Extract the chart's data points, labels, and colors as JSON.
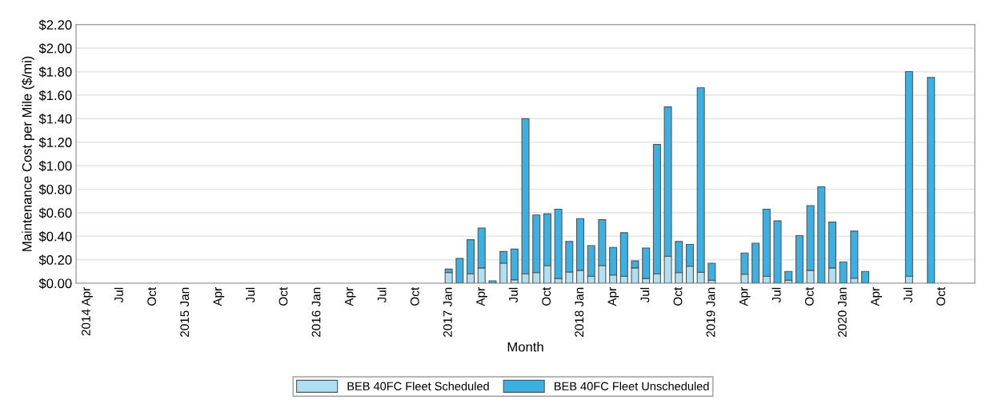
{
  "chart_data": {
    "type": "bar",
    "stacked": true,
    "xlabel": "Month",
    "ylabel": "Maintenance Cost per Mile ($/mi)",
    "categories": [
      "2014 Apr",
      null,
      null,
      "Jul",
      null,
      null,
      "Oct",
      null,
      null,
      "2015 Jan",
      null,
      null,
      "Apr",
      null,
      null,
      "Jul",
      null,
      null,
      "Oct",
      null,
      null,
      "2016 Jan",
      null,
      null,
      "Apr",
      null,
      null,
      "Jul",
      null,
      null,
      "Oct",
      null,
      null,
      "2017 Jan",
      null,
      null,
      "Apr",
      null,
      null,
      "Jul",
      null,
      null,
      "Oct",
      null,
      null,
      "2018 Jan",
      null,
      null,
      "Apr",
      null,
      null,
      "Jul",
      null,
      null,
      "Oct",
      null,
      null,
      "2019 Jan",
      null,
      null,
      "Apr",
      null,
      null,
      "Jul",
      null,
      null,
      "Oct",
      null,
      null,
      "2020 Jan",
      null,
      null,
      "Apr",
      null,
      null,
      "Jul",
      null,
      null,
      "Oct",
      null,
      null
    ],
    "series": [
      {
        "name": "BEB 40FC Fleet Scheduled",
        "color": "#aee0f2",
        "values": [
          null,
          null,
          null,
          null,
          null,
          null,
          null,
          null,
          null,
          null,
          null,
          null,
          null,
          null,
          null,
          null,
          null,
          null,
          null,
          null,
          null,
          null,
          null,
          null,
          null,
          null,
          null,
          null,
          null,
          null,
          null,
          null,
          null,
          0.09,
          null,
          0.08,
          0.13,
          0.0,
          0.17,
          0.03,
          0.08,
          0.09,
          0.15,
          0.04,
          0.095,
          0.11,
          0.06,
          0.15,
          0.07,
          0.06,
          0.13,
          0.04,
          0.08,
          0.23,
          0.09,
          0.145,
          0.093,
          0.025,
          null,
          null,
          0.077,
          null,
          0.06,
          0,
          0.025,
          0,
          0.11,
          0,
          0.13,
          0,
          0.043,
          0,
          null,
          null,
          null,
          0.06,
          null,
          0,
          null,
          null,
          null
        ]
      },
      {
        "name": "BEB 40FC Fleet Unscheduled",
        "color": "#3bb0e3",
        "values": [
          null,
          null,
          null,
          null,
          null,
          null,
          null,
          null,
          null,
          null,
          null,
          null,
          null,
          null,
          null,
          null,
          null,
          null,
          null,
          null,
          null,
          null,
          null,
          null,
          null,
          null,
          null,
          null,
          null,
          null,
          null,
          null,
          null,
          0.03,
          0.21,
          0.29,
          0.34,
          0.02,
          0.1,
          0.26,
          1.32,
          0.49,
          0.44,
          0.59,
          0.26,
          0.44,
          0.26,
          0.39,
          0.235,
          0.37,
          0.06,
          0.26,
          1.1,
          1.27,
          0.265,
          0.185,
          1.57,
          0.145,
          null,
          null,
          0.18,
          0.34,
          0.57,
          0.53,
          0.075,
          0.405,
          0.55,
          0.82,
          0.39,
          0.18,
          0.4,
          0.1,
          null,
          null,
          null,
          1.74,
          null,
          1.75,
          null,
          null,
          null
        ]
      }
    ],
    "ylim": [
      0,
      2.2
    ],
    "yticks": [
      {
        "value": 0,
        "label": "$0.00"
      },
      {
        "value": 0.2,
        "label": "$0.20"
      },
      {
        "value": 0.4,
        "label": "$0.40"
      },
      {
        "value": 0.6,
        "label": "$0.60"
      },
      {
        "value": 0.8,
        "label": "$0.80"
      },
      {
        "value": 1.0,
        "label": "$1.00"
      },
      {
        "value": 1.2,
        "label": "$1.20"
      },
      {
        "value": 1.4,
        "label": "$1.40"
      },
      {
        "value": 1.6,
        "label": "$1.60"
      },
      {
        "value": 1.8,
        "label": "$1.80"
      },
      {
        "value": 2.0,
        "label": "$2.00"
      },
      {
        "value": 2.2,
        "label": "$2.20"
      }
    ],
    "grid": "y",
    "legend": "bottom"
  }
}
